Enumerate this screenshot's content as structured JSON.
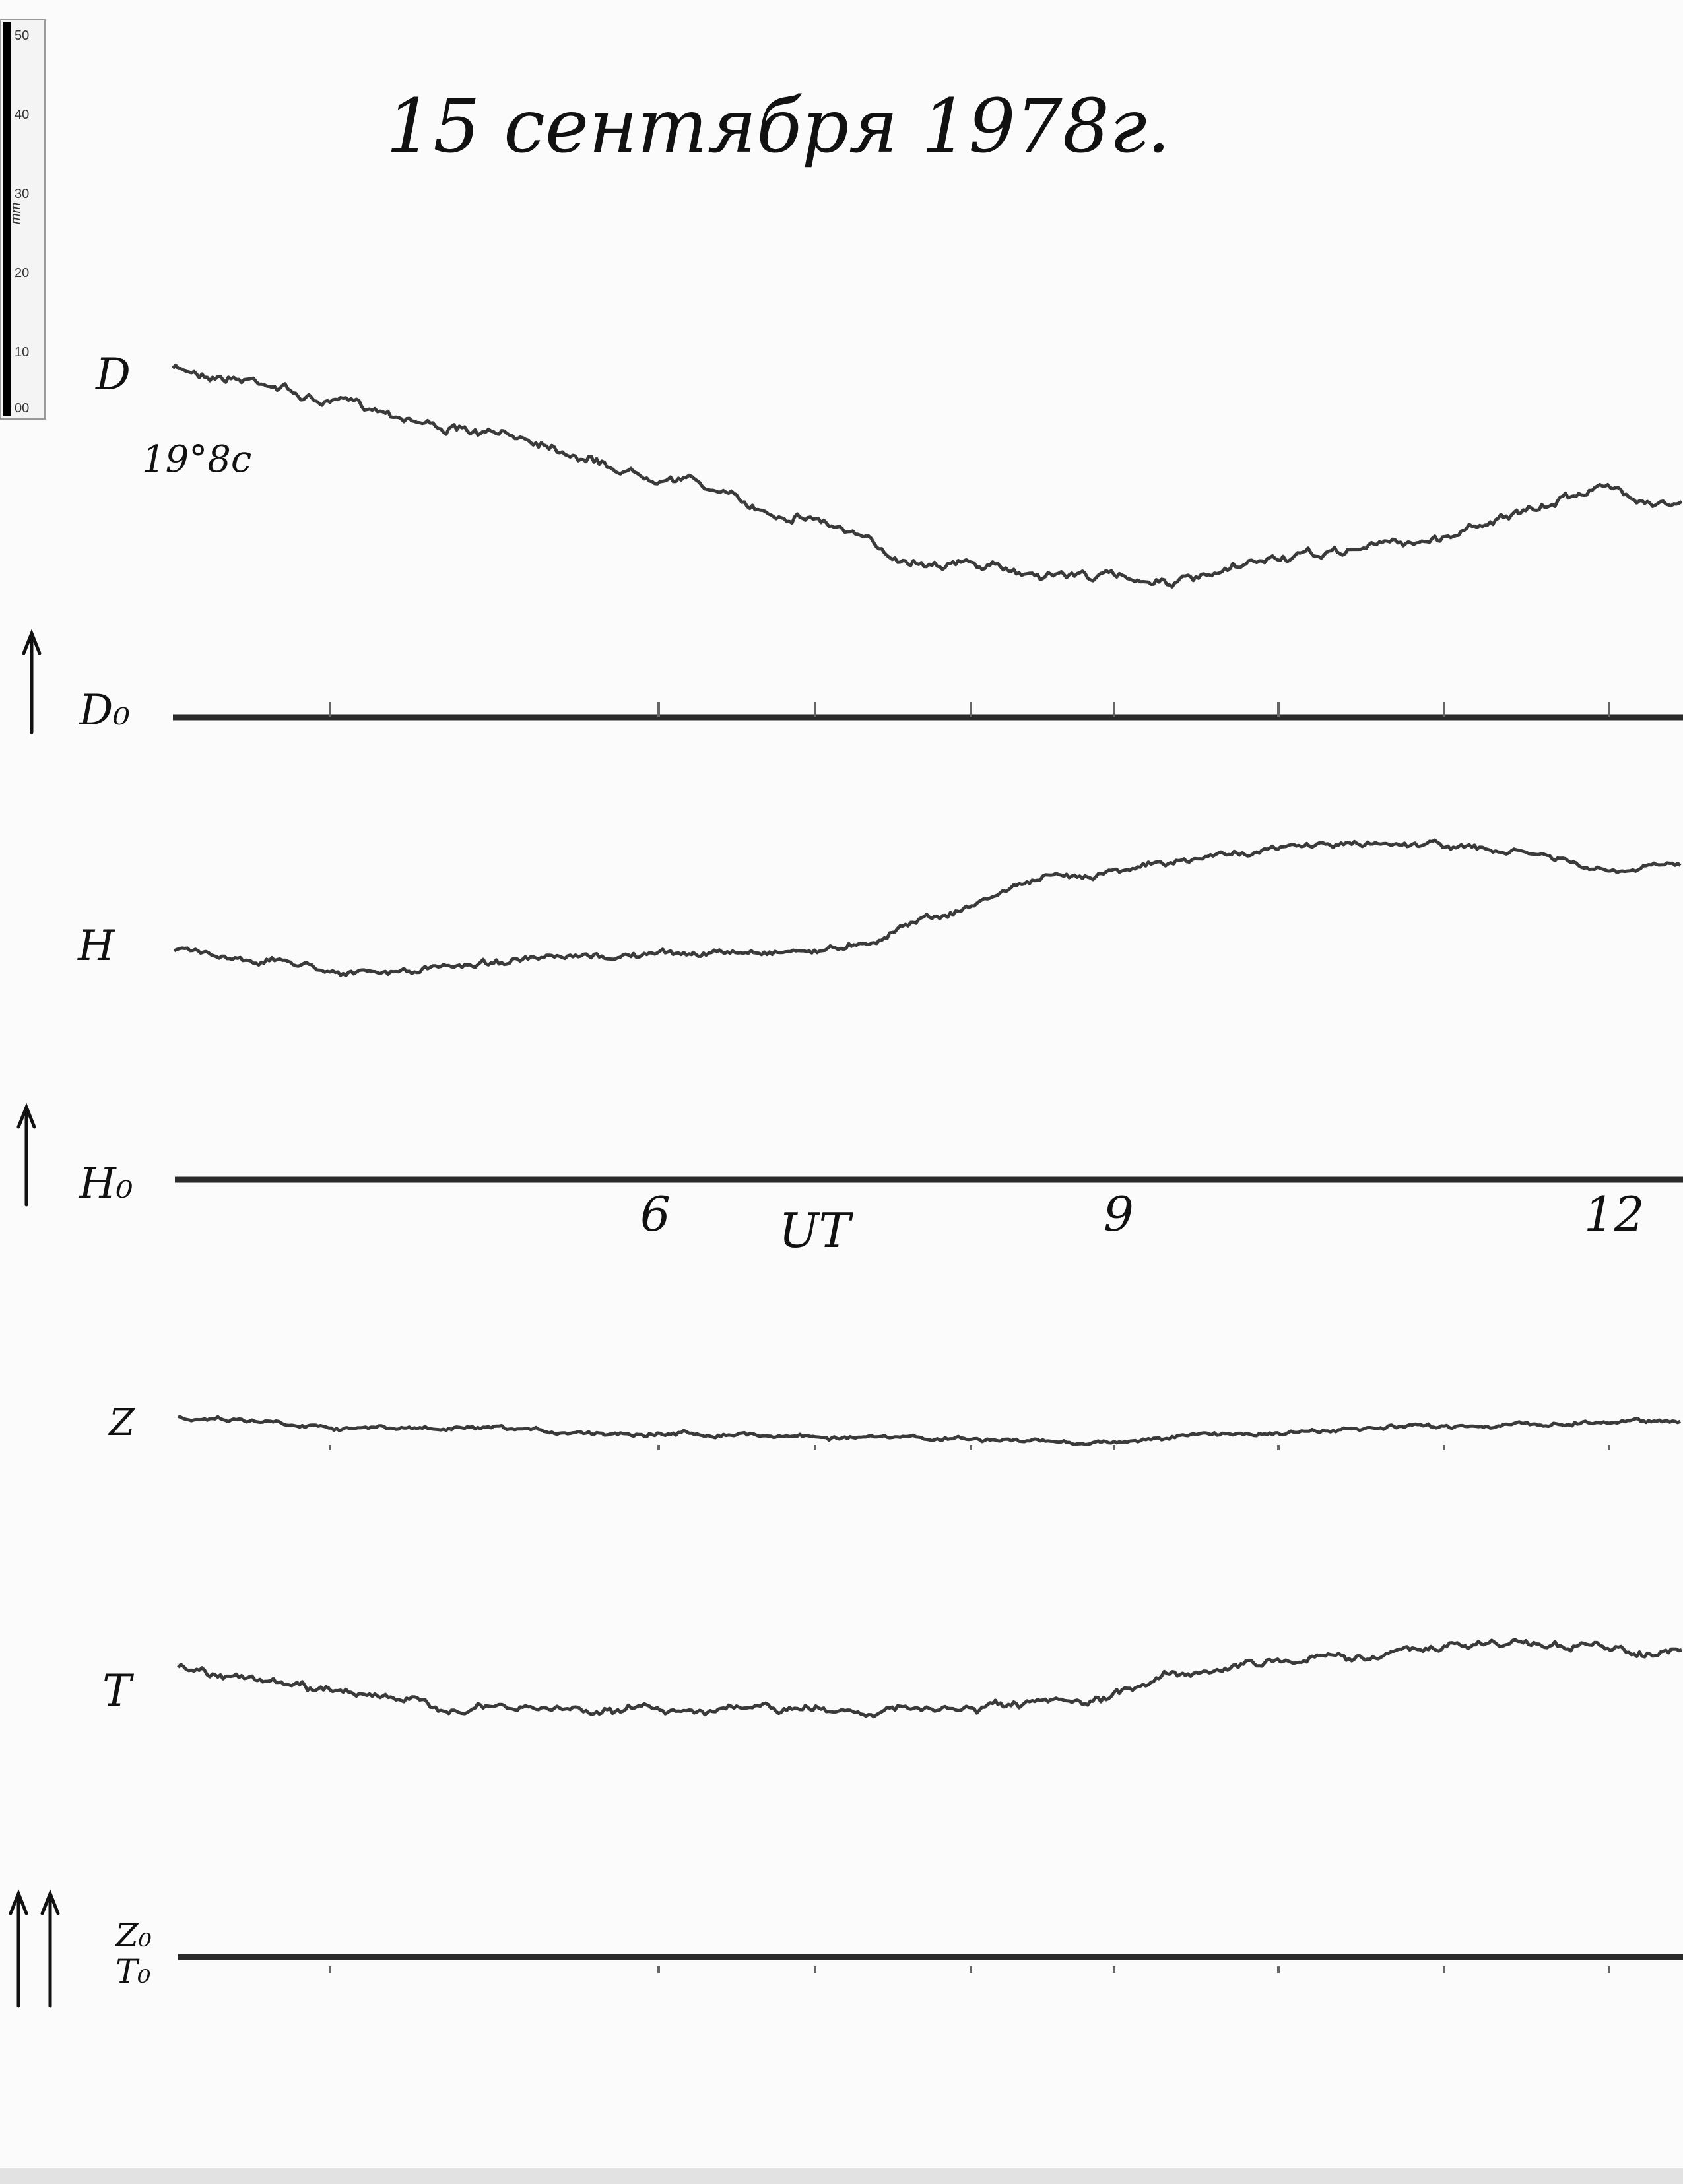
{
  "header": {
    "title": "15 сентября 1978г."
  },
  "scale": {
    "labels": [
      "50",
      "40",
      "30",
      "20",
      "10",
      "00"
    ],
    "unit": "mm"
  },
  "traces": [
    {
      "label": "D",
      "note": "19°8c"
    },
    {
      "label": "H"
    },
    {
      "label": "Z"
    },
    {
      "label": "T"
    }
  ],
  "baselines": [
    {
      "label": "D₀"
    },
    {
      "label": "H₀"
    },
    {
      "label": "Z₀",
      "label2": "T₀"
    }
  ],
  "time_axis": {
    "labels": [
      "6",
      "9",
      "12"
    ],
    "unit": "UT"
  }
}
